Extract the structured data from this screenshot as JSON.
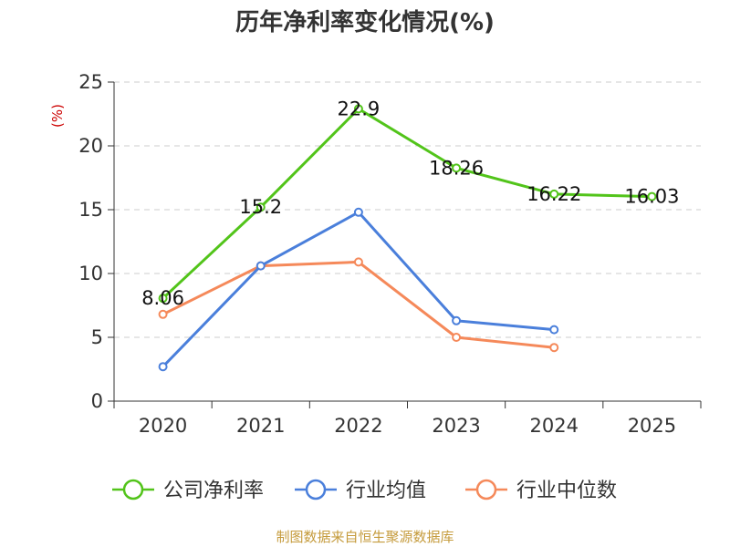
{
  "source": "制图数据来自恒生聚源数据库",
  "chart_data": {
    "type": "line",
    "title": "历年净利率变化情况(%)",
    "ylabel": "(%)",
    "xlabel": "",
    "categories": [
      "2020",
      "2021",
      "2022",
      "2023",
      "2024",
      "2025"
    ],
    "ylim": [
      0,
      25
    ],
    "yticks": [
      0,
      5,
      10,
      15,
      20,
      25
    ],
    "grid": true,
    "legend_position": "bottom",
    "series": [
      {
        "name": "公司净利率",
        "color": "#52c41a",
        "values": [
          8.06,
          15.2,
          22.9,
          18.26,
          16.22,
          16.03
        ],
        "labels": [
          "8.06",
          "15.2",
          "22.9",
          "18.26",
          "16.22",
          "16.03"
        ],
        "show_labels": true
      },
      {
        "name": "行业均值",
        "color": "#4a7fdb",
        "values": [
          2.7,
          10.6,
          14.8,
          6.3,
          5.6,
          null
        ],
        "show_labels": false
      },
      {
        "name": "行业中位数",
        "color": "#f5895a",
        "values": [
          6.8,
          10.6,
          10.9,
          5.0,
          4.2,
          null
        ],
        "show_labels": false
      }
    ]
  }
}
